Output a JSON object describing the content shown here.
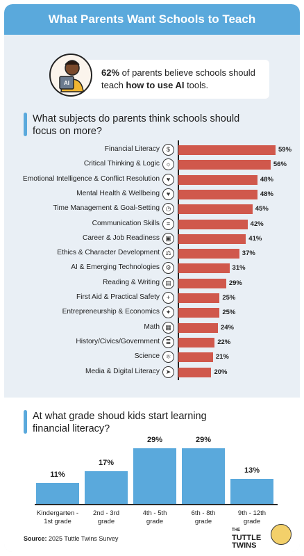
{
  "header": {
    "title": "What Parents Want Schools to Teach"
  },
  "stat": {
    "pct": "62%",
    "pre": " of parents believe schools should teach ",
    "bold": "how to use AI",
    "post": " tools."
  },
  "section1": {
    "title": "What subjects do parents think schools should focus on more?"
  },
  "section2": {
    "title": "At what grade shoud kids start learning financial literacy?"
  },
  "footer": {
    "source_label": "Source:",
    "source_text": "2025 Tuttle Twins Survey",
    "brand_small": "THE",
    "brand_line1": "TUTTLE",
    "brand_line2": "TWINS"
  },
  "chart_data": [
    {
      "type": "bar",
      "orientation": "horizontal",
      "categories": [
        "Financial Literacy",
        "Critical Thinking & Logic",
        "Emotional Intelligence & Conflict Resolution",
        "Mental Health & Wellbeing",
        "Time Management & Goal-Setting",
        "Communication Skills",
        "Career & Job Readiness",
        "Ethics & Character Development",
        "AI & Emerging Technologies",
        "Reading & Writing",
        "First Aid & Practical Safety",
        "Entrepreneurship & Economics",
        "Math",
        "History/Civics/Government",
        "Science",
        "Media & Digital Literacy"
      ],
      "values": [
        59,
        56,
        48,
        48,
        45,
        42,
        41,
        37,
        31,
        29,
        25,
        25,
        24,
        22,
        21,
        20
      ],
      "labels": [
        "59%",
        "56%",
        "48%",
        "48%",
        "45%",
        "42%",
        "41%",
        "37%",
        "31%",
        "29%",
        "25%",
        "25%",
        "24%",
        "22%",
        "21%",
        "20%"
      ],
      "icons": [
        "dollar-icon",
        "brain-icon",
        "heart-head-icon",
        "head-heart-icon",
        "clock-icon",
        "chat-icon",
        "briefcase-icon",
        "scales-icon",
        "gear-icon",
        "book-icon",
        "first-aid-icon",
        "lightbulb-icon",
        "calculator-icon",
        "document-icon",
        "atom-icon",
        "cursor-icon"
      ],
      "color": "#d0584c",
      "xlim": [
        0,
        59
      ]
    },
    {
      "type": "bar",
      "orientation": "vertical",
      "categories": [
        "Kindergarten - 1st grade",
        "2nd - 3rd grade",
        "4th - 5th grade",
        "6th - 8th grade",
        "9th - 12th grade"
      ],
      "category_lines": [
        [
          "Kindergarten -",
          "1st grade"
        ],
        [
          "2nd - 3rd",
          "grade"
        ],
        [
          "4th - 5th",
          "grade"
        ],
        [
          "6th - 8th",
          "grade"
        ],
        [
          "9th - 12th",
          "grade"
        ]
      ],
      "values": [
        11,
        17,
        29,
        29,
        13
      ],
      "labels": [
        "11%",
        "17%",
        "29%",
        "29%",
        "13%"
      ],
      "color": "#5aa9dc",
      "ylim": [
        0,
        29
      ]
    }
  ]
}
